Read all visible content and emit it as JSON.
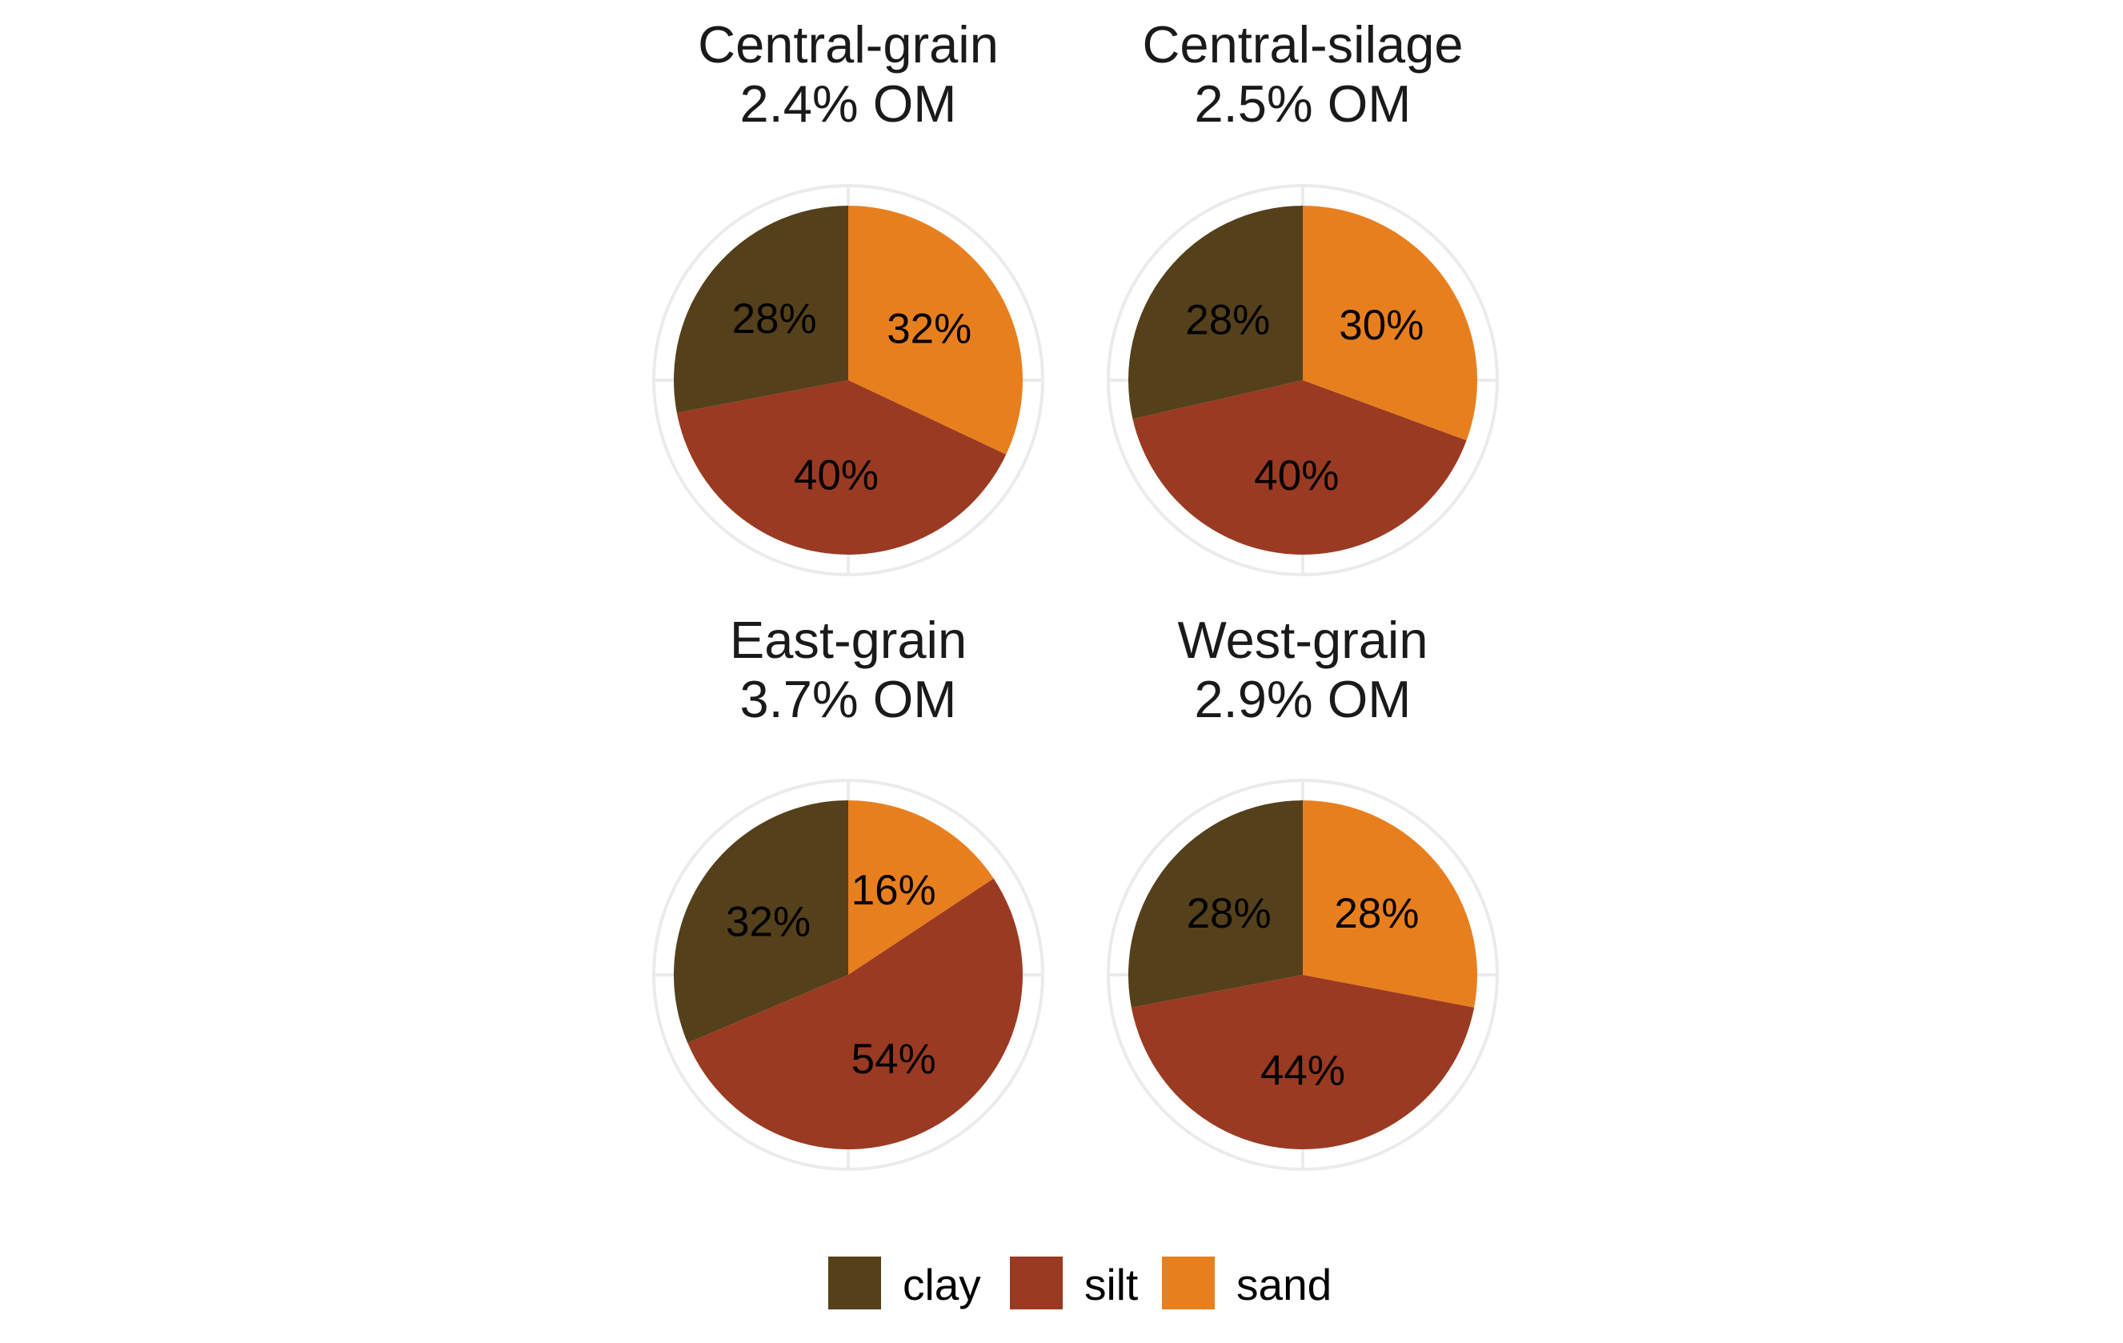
{
  "chart_data": {
    "type": "pie",
    "legend": {
      "position": "bottom",
      "entries": [
        {
          "name": "clay",
          "color": "#54401A"
        },
        {
          "name": "silt",
          "color": "#9A3A22"
        },
        {
          "name": "sand",
          "color": "#E87F1F"
        }
      ]
    },
    "panels": [
      {
        "title": [
          "Central-grain",
          "2.4% OM"
        ],
        "slices": [
          {
            "category": "sand",
            "value": 32,
            "label": "32%"
          },
          {
            "category": "silt",
            "value": 40,
            "label": "40%"
          },
          {
            "category": "clay",
            "value": 28,
            "label": "28%"
          }
        ]
      },
      {
        "title": [
          "Central-silage",
          "2.5% OM"
        ],
        "slices": [
          {
            "category": "sand",
            "value": 30,
            "label": "30%"
          },
          {
            "category": "silt",
            "value": 40,
            "label": "40%"
          },
          {
            "category": "clay",
            "value": 28,
            "label": "28%"
          }
        ]
      },
      {
        "title": [
          "East-grain",
          "3.7% OM"
        ],
        "slices": [
          {
            "category": "sand",
            "value": 16,
            "label": "16%"
          },
          {
            "category": "silt",
            "value": 54,
            "label": "54%"
          },
          {
            "category": "clay",
            "value": 32,
            "label": "32%"
          }
        ]
      },
      {
        "title": [
          "West-grain",
          "2.9% OM"
        ],
        "slices": [
          {
            "category": "sand",
            "value": 28,
            "label": "28%"
          },
          {
            "category": "silt",
            "value": 44,
            "label": "44%"
          },
          {
            "category": "clay",
            "value": 28,
            "label": "28%"
          }
        ]
      }
    ],
    "grid": true,
    "grid_color": "#EBEBEB"
  }
}
